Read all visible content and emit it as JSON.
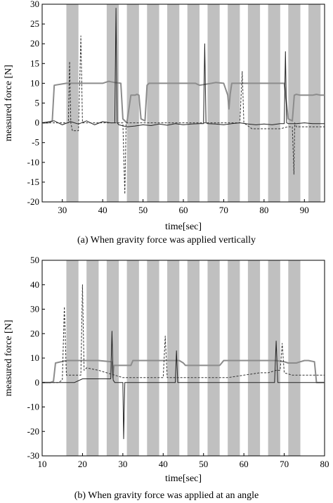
{
  "chart_data": [
    {
      "type": "line",
      "caption": "(a) When gravity force was applied vertically",
      "xlabel": "time[sec]",
      "ylabel": "measured force [N]",
      "xlim": [
        25,
        95
      ],
      "ylim": [
        -20,
        30
      ],
      "xticks": [
        30,
        40,
        50,
        60,
        70,
        80,
        90
      ],
      "yticks": [
        -20,
        -15,
        -10,
        -5,
        0,
        5,
        10,
        15,
        20,
        25,
        30
      ],
      "grid": false,
      "shaded_bands": [
        [
          31,
          34
        ],
        [
          41,
          44
        ],
        [
          46,
          49
        ],
        [
          51,
          54
        ],
        [
          56,
          59
        ],
        [
          61,
          64
        ],
        [
          66,
          69
        ],
        [
          71,
          74
        ],
        [
          76,
          79
        ],
        [
          81,
          84
        ],
        [
          86,
          89
        ],
        [
          91,
          94
        ]
      ],
      "band_color": "#c0c0c0",
      "series": [
        {
          "style": "solid",
          "color": "#8c8c8c",
          "width": 2,
          "x": [
            25,
            26.5,
            27.5,
            28,
            31,
            38,
            40,
            41.5,
            43,
            44.5,
            45,
            46,
            47,
            48,
            48.5,
            49,
            49.5,
            50.5,
            51,
            51.5,
            54,
            58,
            60,
            63,
            64,
            67,
            68,
            70,
            71,
            71.3,
            71.6,
            72,
            73,
            74,
            78,
            80,
            82,
            83,
            84,
            85,
            86,
            87,
            87.5,
            88,
            89,
            90,
            92,
            93,
            94,
            95
          ],
          "y": [
            0,
            0,
            0.5,
            9.5,
            10,
            10,
            10,
            10.5,
            10.2,
            10,
            1,
            0,
            7,
            7,
            7.2,
            7,
            1,
            0.5,
            9.5,
            10,
            10,
            10,
            10,
            10,
            9.5,
            10,
            10.2,
            10,
            7,
            3.5,
            7.2,
            10,
            10,
            10,
            10,
            10,
            10,
            10,
            10,
            10,
            1,
            0.5,
            7,
            7.2,
            7,
            7,
            7,
            7.2,
            7,
            7
          ]
        },
        {
          "style": "solid",
          "color": "#222222",
          "width": 1,
          "x": [
            25,
            28,
            30,
            32,
            34,
            36,
            38,
            40,
            42,
            43,
            43.3,
            43.6,
            44,
            46,
            48,
            50,
            52,
            54,
            56,
            58,
            60,
            62,
            64,
            65,
            65.3,
            65.6,
            66,
            68,
            70,
            72,
            74,
            76,
            78,
            80,
            82,
            84,
            85,
            85.3,
            85.6,
            86,
            88,
            90,
            92,
            95
          ],
          "y": [
            0,
            0.5,
            -0.5,
            0.3,
            -0.3,
            0.5,
            -0.5,
            0.3,
            0,
            0,
            29,
            0,
            -0.5,
            -1,
            -0.8,
            -0.5,
            -0.7,
            -0.3,
            -0.6,
            -0.2,
            -0.5,
            -0.3,
            -0.2,
            -0.2,
            20,
            0,
            -0.2,
            -0.3,
            -0.5,
            -0.2,
            0,
            -0.3,
            -0.5,
            -0.3,
            -0.5,
            -0.2,
            -0.2,
            18,
            0,
            -0.2,
            -0.2,
            0,
            -0.2,
            -0.2
          ]
        },
        {
          "style": "dashed",
          "color": "#333333",
          "width": 1,
          "x": [
            25,
            30,
            31.5,
            31.8,
            32.1,
            32.5,
            34,
            34.6,
            35,
            37,
            40,
            44,
            45,
            45.5,
            45.8,
            46,
            48,
            50,
            52,
            54,
            56,
            58,
            60,
            62,
            64,
            66,
            68,
            70,
            72,
            74,
            74.6,
            75,
            77,
            80,
            82,
            84,
            86,
            87,
            87.4,
            87.6,
            88,
            90,
            92,
            95
          ],
          "y": [
            0,
            0,
            0,
            15.5,
            0,
            -2,
            -2,
            22,
            0,
            0,
            0,
            0,
            0,
            -18,
            0,
            0,
            0,
            0,
            0,
            0,
            0,
            0,
            0,
            0,
            0,
            0,
            0,
            0,
            0,
            0,
            13,
            0,
            -1.5,
            -1.5,
            -1.5,
            -1.5,
            -1,
            -1,
            -13,
            0,
            -1,
            -1,
            -1,
            -1
          ]
        }
      ]
    },
    {
      "type": "line",
      "caption": "(b) When gravity force was applied at an angle",
      "xlabel": "time[sec]",
      "ylabel": "measured force [N]",
      "xlim": [
        10,
        80
      ],
      "ylim": [
        -30,
        50
      ],
      "xticks": [
        10,
        20,
        30,
        40,
        50,
        60,
        70,
        80
      ],
      "yticks": [
        -30,
        -20,
        -10,
        0,
        10,
        20,
        30,
        40,
        50
      ],
      "grid": false,
      "shaded_bands": [
        [
          16,
          19
        ],
        [
          21,
          24
        ],
        [
          26,
          29
        ],
        [
          31,
          34
        ],
        [
          36,
          39
        ],
        [
          41,
          44
        ],
        [
          46,
          49
        ],
        [
          51,
          54
        ],
        [
          56,
          59
        ],
        [
          61,
          64
        ],
        [
          66,
          69
        ],
        [
          71,
          74
        ]
      ],
      "band_color": "#c0c0c0",
      "series": [
        {
          "style": "solid",
          "color": "#8c8c8c",
          "width": 2,
          "x": [
            10,
            12,
            12.8,
            13.3,
            16,
            20,
            24,
            27.2,
            27.5,
            27.8,
            30,
            31,
            32,
            32.5,
            34,
            40,
            44,
            45,
            45.5,
            46,
            47,
            50,
            54,
            54.5,
            55,
            56,
            60,
            66,
            68,
            70,
            71,
            72,
            73,
            74,
            75,
            76,
            77.5,
            78,
            80
          ],
          "y": [
            0,
            0,
            0.5,
            8,
            9,
            9,
            9,
            8.5,
            2,
            7,
            7,
            7,
            7,
            9,
            9,
            9,
            9,
            8,
            7,
            7,
            7,
            7,
            7,
            8,
            9,
            9,
            9,
            9,
            9,
            8.5,
            8,
            8,
            8,
            8.5,
            9,
            9,
            8.5,
            0,
            0
          ]
        },
        {
          "style": "solid",
          "color": "#222222",
          "width": 1,
          "x": [
            10,
            14,
            16,
            18,
            20,
            22,
            24,
            26,
            27,
            27.3,
            27.6,
            28,
            30,
            30.2,
            30.5,
            31,
            33,
            36,
            38,
            40,
            42,
            43,
            43.3,
            43.6,
            44,
            46,
            48,
            50,
            52,
            54,
            56,
            58,
            60,
            62,
            64,
            66,
            67.6,
            68,
            68.4,
            70,
            72,
            74,
            76,
            78,
            80
          ],
          "y": [
            0,
            0,
            0,
            0,
            1.5,
            1.5,
            1.5,
            1.5,
            1.5,
            21,
            1,
            0,
            0,
            -23,
            0,
            0,
            0,
            0,
            0,
            0,
            0,
            0,
            13,
            0,
            0,
            0,
            0,
            0,
            0,
            0,
            0,
            0,
            0,
            0,
            0,
            0,
            0,
            17,
            0,
            0,
            0,
            0,
            0,
            0,
            0
          ]
        },
        {
          "style": "dashed",
          "color": "#333333",
          "width": 1,
          "x": [
            10,
            14,
            15,
            15.5,
            16,
            18,
            19.6,
            20,
            20.4,
            21,
            24,
            26,
            28,
            30,
            32,
            34,
            36,
            38,
            40,
            40.5,
            41,
            42,
            44,
            48,
            52,
            54,
            56,
            60,
            64,
            66,
            68,
            69,
            69.5,
            70,
            72,
            76,
            78,
            80
          ],
          "y": [
            0,
            0,
            1,
            31,
            3,
            3,
            3,
            40,
            5,
            6,
            5,
            4,
            3,
            2,
            2,
            2,
            2,
            2,
            2,
            19,
            2,
            2,
            2,
            2,
            2,
            2,
            2,
            3,
            4,
            4,
            5,
            5,
            16,
            4,
            3,
            3,
            3,
            3
          ]
        }
      ]
    }
  ]
}
